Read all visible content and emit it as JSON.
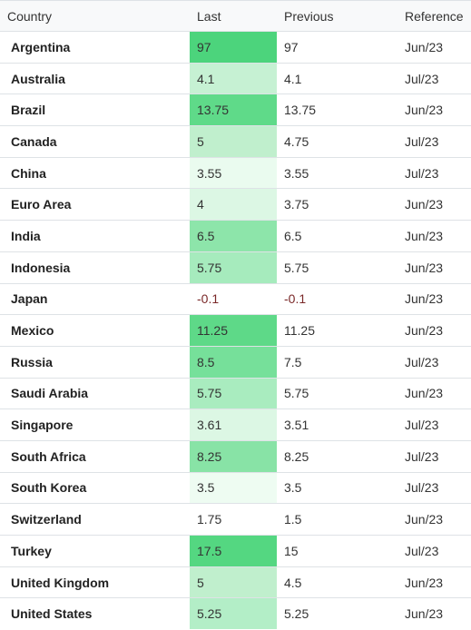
{
  "table": {
    "headers": [
      "Country",
      "Last",
      "Previous",
      "Reference"
    ],
    "rows": [
      {
        "country": "Argentina",
        "last": "97",
        "previous": "97",
        "reference": "Jun/23",
        "shade": "#4cd47c"
      },
      {
        "country": "Australia",
        "last": "4.1",
        "previous": "4.1",
        "reference": "Jul/23",
        "shade": "#c6f1d3"
      },
      {
        "country": "Brazil",
        "last": "13.75",
        "previous": "13.75",
        "reference": "Jun/23",
        "shade": "#5fda89"
      },
      {
        "country": "Canada",
        "last": "5",
        "previous": "4.75",
        "reference": "Jul/23",
        "shade": "#c0efcd"
      },
      {
        "country": "China",
        "last": "3.55",
        "previous": "3.55",
        "reference": "Jul/23",
        "shade": "#eafbef"
      },
      {
        "country": "Euro Area",
        "last": "4",
        "previous": "3.75",
        "reference": "Jun/23",
        "shade": "#dcf7e4"
      },
      {
        "country": "India",
        "last": "6.5",
        "previous": "6.5",
        "reference": "Jun/23",
        "shade": "#8de5aa"
      },
      {
        "country": "Indonesia",
        "last": "5.75",
        "previous": "5.75",
        "reference": "Jun/23",
        "shade": "#a6ebbd"
      },
      {
        "country": "Japan",
        "last": "-0.1",
        "previous": "-0.1",
        "reference": "Jun/23",
        "shade": "#ffffff",
        "negative": true
      },
      {
        "country": "Mexico",
        "last": "11.25",
        "previous": "11.25",
        "reference": "Jun/23",
        "shade": "#5ed988"
      },
      {
        "country": "Russia",
        "last": "8.5",
        "previous": "7.5",
        "reference": "Jul/23",
        "shade": "#76e09a"
      },
      {
        "country": "Saudi Arabia",
        "last": "5.75",
        "previous": "5.75",
        "reference": "Jun/23",
        "shade": "#a9ecbf"
      },
      {
        "country": "Singapore",
        "last": "3.61",
        "previous": "3.51",
        "reference": "Jul/23",
        "shade": "#dcf7e4"
      },
      {
        "country": "South Africa",
        "last": "8.25",
        "previous": "8.25",
        "reference": "Jul/23",
        "shade": "#88e3a6"
      },
      {
        "country": "South Korea",
        "last": "3.5",
        "previous": "3.5",
        "reference": "Jul/23",
        "shade": "#eefcf2"
      },
      {
        "country": "Switzerland",
        "last": "1.75",
        "previous": "1.5",
        "reference": "Jun/23",
        "shade": "#ffffff"
      },
      {
        "country": "Turkey",
        "last": "17.5",
        "previous": "15",
        "reference": "Jul/23",
        "shade": "#54d781"
      },
      {
        "country": "United Kingdom",
        "last": "5",
        "previous": "4.5",
        "reference": "Jun/23",
        "shade": "#c0efcd"
      },
      {
        "country": "United States",
        "last": "5.25",
        "previous": "5.25",
        "reference": "Jun/23",
        "shade": "#b3eec7"
      }
    ]
  }
}
